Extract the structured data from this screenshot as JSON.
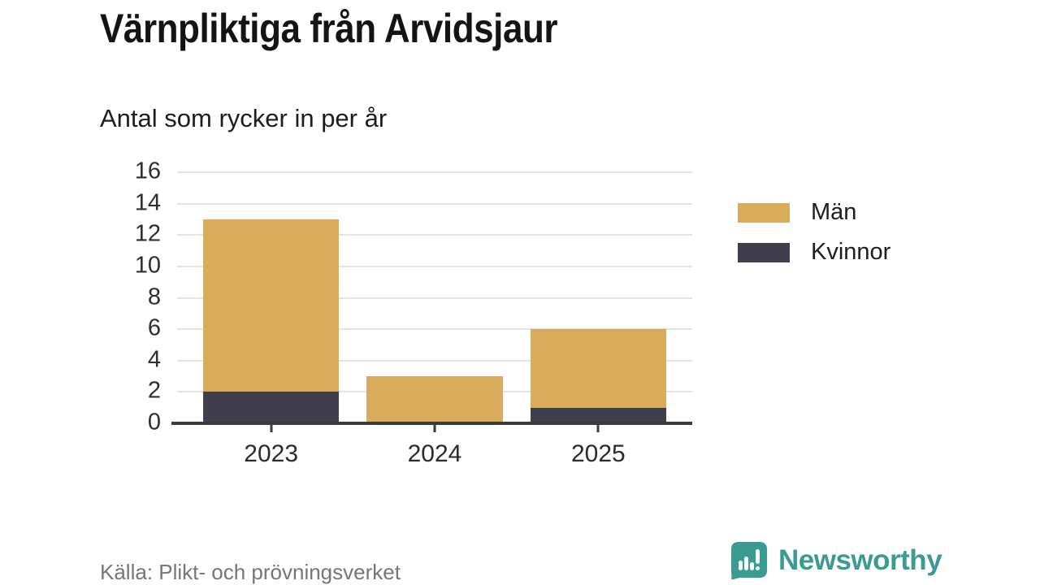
{
  "header": {
    "title": "Värnpliktiga från Arvidsjaur",
    "subtitle": "Antal som rycker in per år"
  },
  "chart_data": {
    "type": "bar",
    "stacked": true,
    "categories": [
      "2023",
      "2024",
      "2025"
    ],
    "series": [
      {
        "name": "Män",
        "color": "#D9AB5C",
        "values": [
          11,
          3,
          5
        ]
      },
      {
        "name": "Kvinnor",
        "color": "#413F4E",
        "values": [
          2,
          0,
          1
        ]
      }
    ],
    "stack_totals": [
      13,
      3,
      6
    ],
    "ylim": [
      0,
      16
    ],
    "yticks": [
      0,
      2,
      4,
      6,
      8,
      10,
      12,
      14,
      16
    ],
    "grid": true,
    "legend_position": "right",
    "xlabel": "",
    "ylabel": ""
  },
  "footer": {
    "source": "Källa: Plikt- och prövningsverket",
    "brand": "Newsworthy"
  },
  "colors": {
    "axis": "#3B3B3B",
    "grid": "#E4E4E4",
    "brand_teal": "#3A9B93"
  }
}
